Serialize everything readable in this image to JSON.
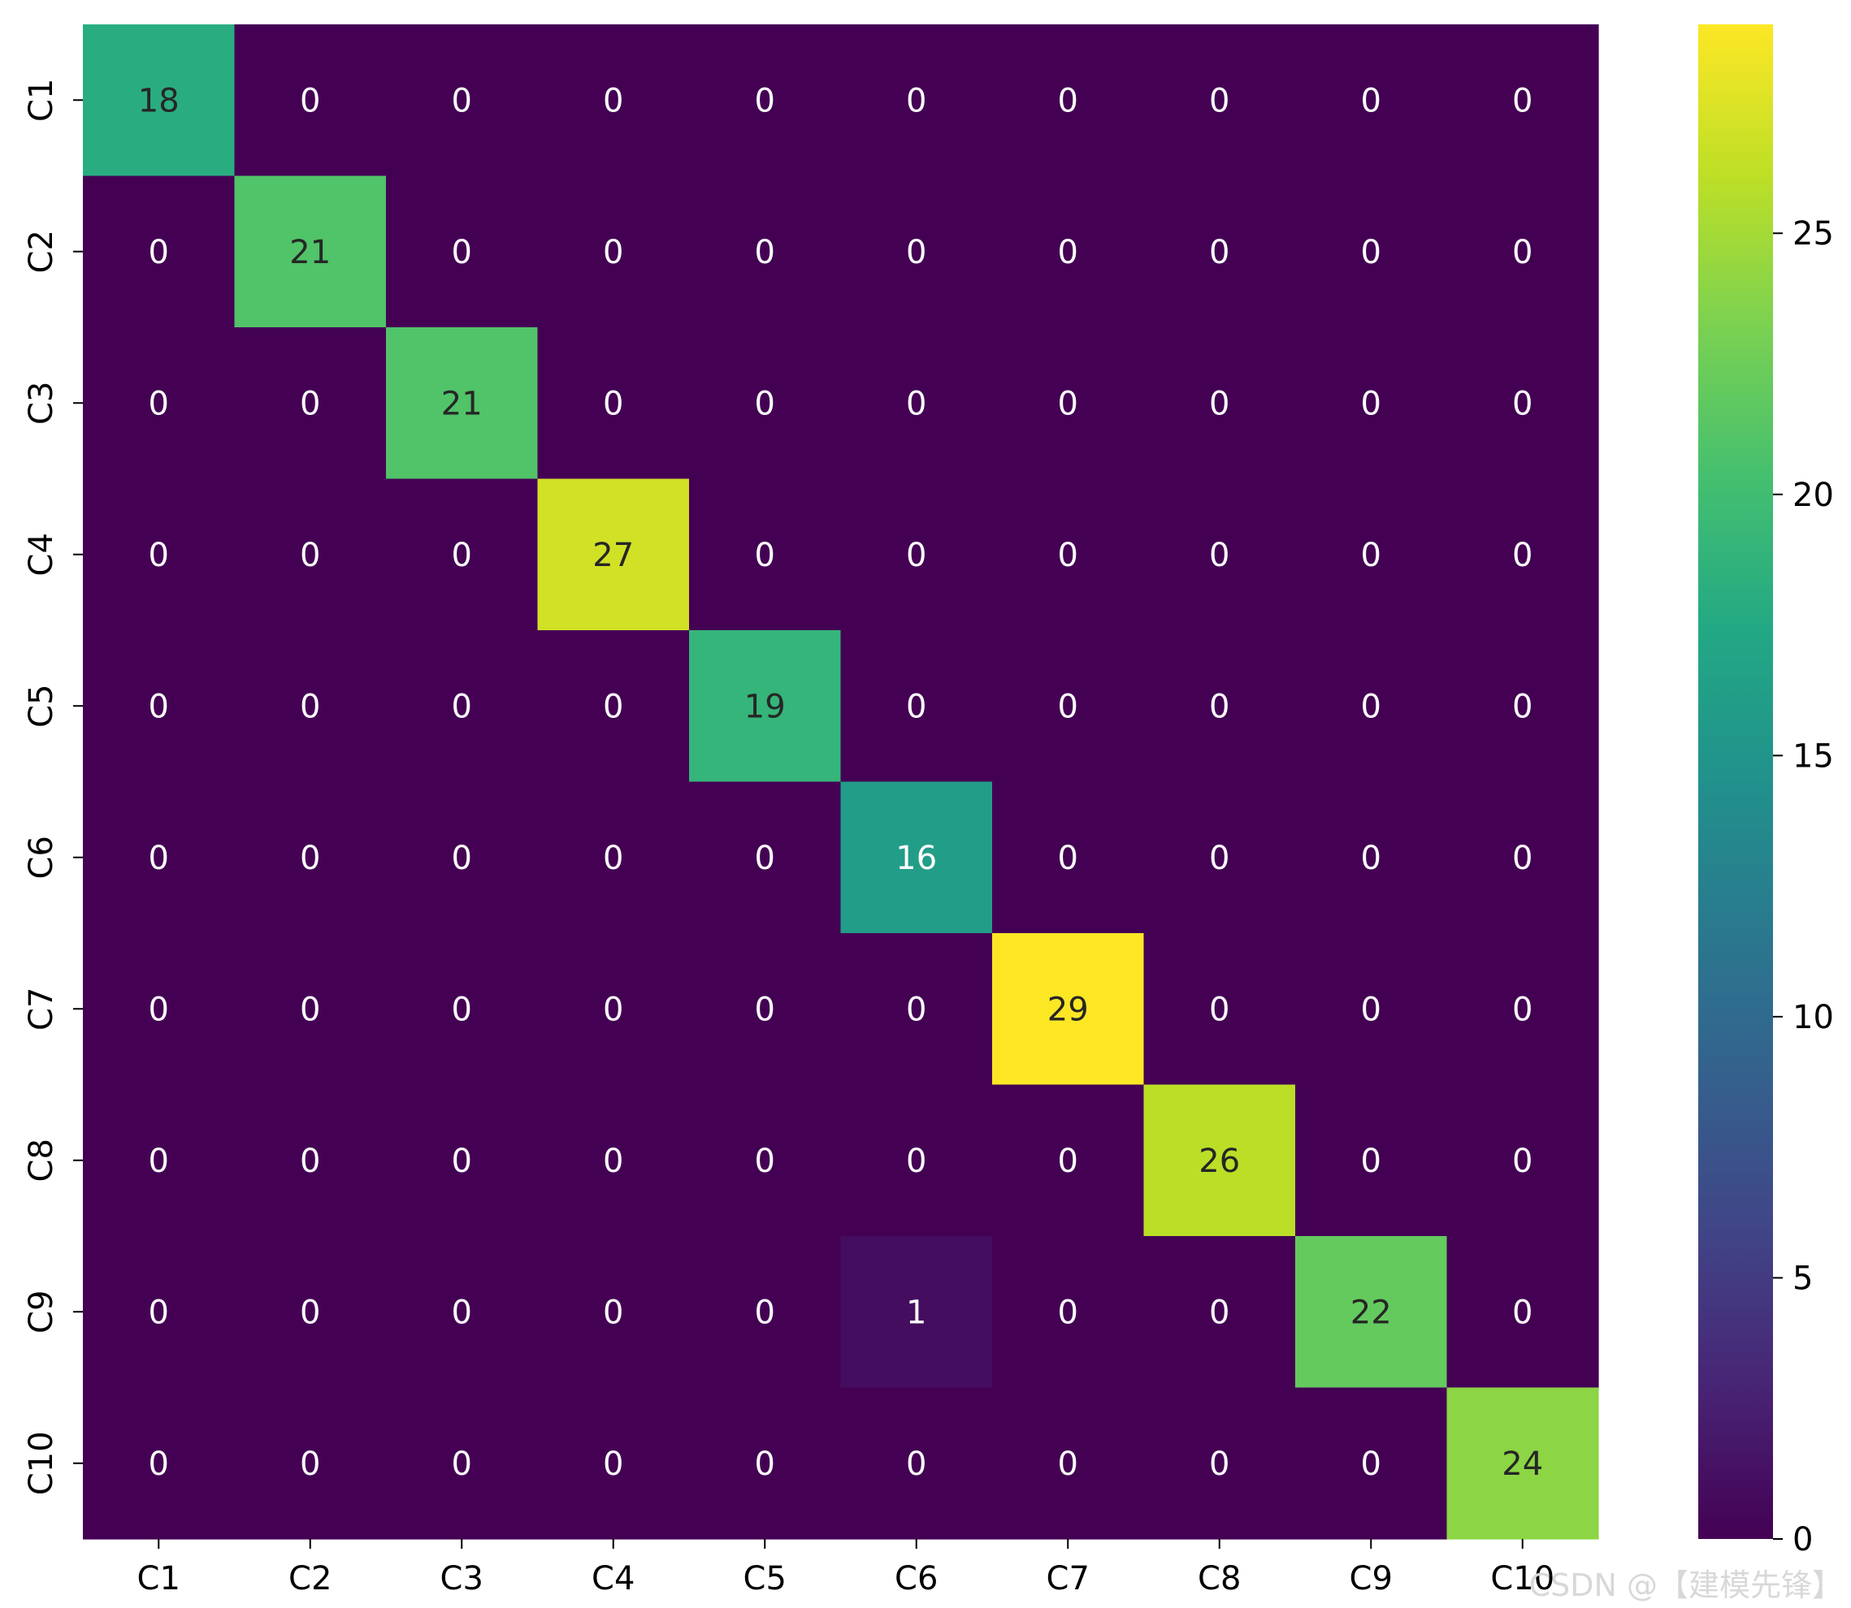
{
  "chart_data": {
    "type": "heatmap",
    "title": "",
    "xlabel": "",
    "ylabel": "",
    "x_categories": [
      "C1",
      "C2",
      "C3",
      "C4",
      "C5",
      "C6",
      "C7",
      "C8",
      "C9",
      "C10"
    ],
    "y_categories": [
      "C1",
      "C2",
      "C3",
      "C4",
      "C5",
      "C6",
      "C7",
      "C8",
      "C9",
      "C10"
    ],
    "values": [
      [
        18,
        0,
        0,
        0,
        0,
        0,
        0,
        0,
        0,
        0
      ],
      [
        0,
        21,
        0,
        0,
        0,
        0,
        0,
        0,
        0,
        0
      ],
      [
        0,
        0,
        21,
        0,
        0,
        0,
        0,
        0,
        0,
        0
      ],
      [
        0,
        0,
        0,
        27,
        0,
        0,
        0,
        0,
        0,
        0
      ],
      [
        0,
        0,
        0,
        0,
        19,
        0,
        0,
        0,
        0,
        0
      ],
      [
        0,
        0,
        0,
        0,
        0,
        16,
        0,
        0,
        0,
        0
      ],
      [
        0,
        0,
        0,
        0,
        0,
        0,
        29,
        0,
        0,
        0
      ],
      [
        0,
        0,
        0,
        0,
        0,
        0,
        0,
        26,
        0,
        0
      ],
      [
        0,
        0,
        0,
        0,
        0,
        1,
        0,
        0,
        22,
        0
      ],
      [
        0,
        0,
        0,
        0,
        0,
        0,
        0,
        0,
        0,
        24
      ]
    ],
    "colormap": "viridis",
    "value_range": [
      0,
      29
    ],
    "colorbar_ticks": [
      "0",
      "5",
      "10",
      "15",
      "20",
      "25"
    ],
    "colorbar_position": "right",
    "annotations": "cell values shown",
    "grid": false
  },
  "watermark": {
    "text": "CSDN @【建模先锋】"
  }
}
